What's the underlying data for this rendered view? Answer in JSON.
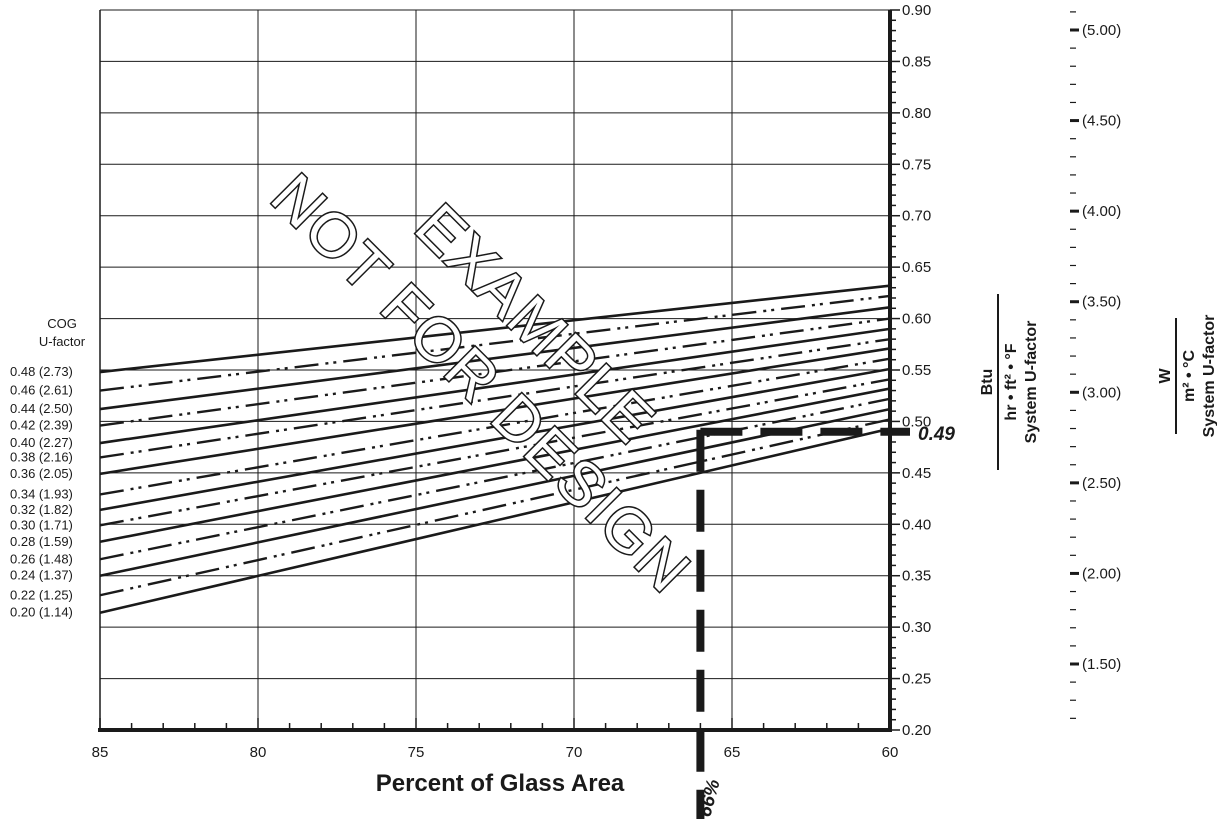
{
  "chart_data": {
    "type": "line",
    "title": "",
    "xlabel": "Percent of Glass Area",
    "xlim": [
      85,
      60
    ],
    "x_ticks": [
      "85",
      "80",
      "75",
      "70",
      "65",
      "60"
    ],
    "ylim": [
      0.2,
      0.9
    ],
    "y_ticks": [
      "0.20",
      "0.25",
      "0.30",
      "0.35",
      "0.40",
      "0.45",
      "0.50",
      "0.55",
      "0.60",
      "0.65",
      "0.70",
      "0.75",
      "0.80",
      "0.85",
      "0.90"
    ],
    "y_unit_ip": {
      "numerator": "Btu",
      "denominator": "hr • ft² • °F",
      "label": "System U-factor"
    },
    "y_ticks_si": [
      "(1.50)",
      "(2.00)",
      "(2.50)",
      "(3.00)",
      "(3.50)",
      "(4.00)",
      "(4.50)",
      "(5.00)"
    ],
    "y_unit_si": {
      "numerator": "W",
      "denominator": "m² • °C",
      "label": "System U-factor"
    },
    "legend_title": [
      "COG",
      "U-factor"
    ],
    "legend_position": "left",
    "series": [
      {
        "name": "0.48 (2.73)",
        "style": "solid",
        "values": [
          0.548,
          0.632
        ]
      },
      {
        "name": "0.46 (2.61)",
        "style": "dashdotdot",
        "values": [
          0.53,
          0.622
        ]
      },
      {
        "name": "0.44 (2.50)",
        "style": "solid",
        "values": [
          0.512,
          0.611
        ]
      },
      {
        "name": "0.42 (2.39)",
        "style": "dashdotdot",
        "values": [
          0.496,
          0.6
        ]
      },
      {
        "name": "0.40 (2.27)",
        "style": "solid",
        "values": [
          0.479,
          0.59
        ]
      },
      {
        "name": "0.38 (2.16)",
        "style": "dashdotdot",
        "values": [
          0.465,
          0.58
        ]
      },
      {
        "name": "0.36 (2.05)",
        "style": "solid",
        "values": [
          0.449,
          0.571
        ]
      },
      {
        "name": "0.34 (1.93)",
        "style": "dashdotdot",
        "values": [
          0.429,
          0.561
        ]
      },
      {
        "name": "0.32 (1.82)",
        "style": "solid",
        "values": [
          0.414,
          0.551
        ]
      },
      {
        "name": "0.30 (1.71)",
        "style": "dashdotdot",
        "values": [
          0.399,
          0.541
        ]
      },
      {
        "name": "0.28 (1.59)",
        "style": "solid",
        "values": [
          0.383,
          0.532
        ]
      },
      {
        "name": "0.26 (1.48)",
        "style": "dashdotdot",
        "values": [
          0.366,
          0.522
        ]
      },
      {
        "name": "0.24 (1.37)",
        "style": "solid",
        "values": [
          0.35,
          0.512
        ]
      },
      {
        "name": "0.22 (1.25)",
        "style": "dashdotdot",
        "values": [
          0.331,
          0.502
        ]
      },
      {
        "name": "0.20 (1.14)",
        "style": "solid",
        "values": [
          0.314,
          0.493
        ]
      }
    ],
    "series_x": [
      85,
      60
    ],
    "example": {
      "x": 66,
      "y": 0.49,
      "x_label": "66%",
      "y_label": "0.49"
    },
    "watermark": [
      "NOT FOR DESIGN",
      "EXAMPLE"
    ],
    "grid": true
  }
}
